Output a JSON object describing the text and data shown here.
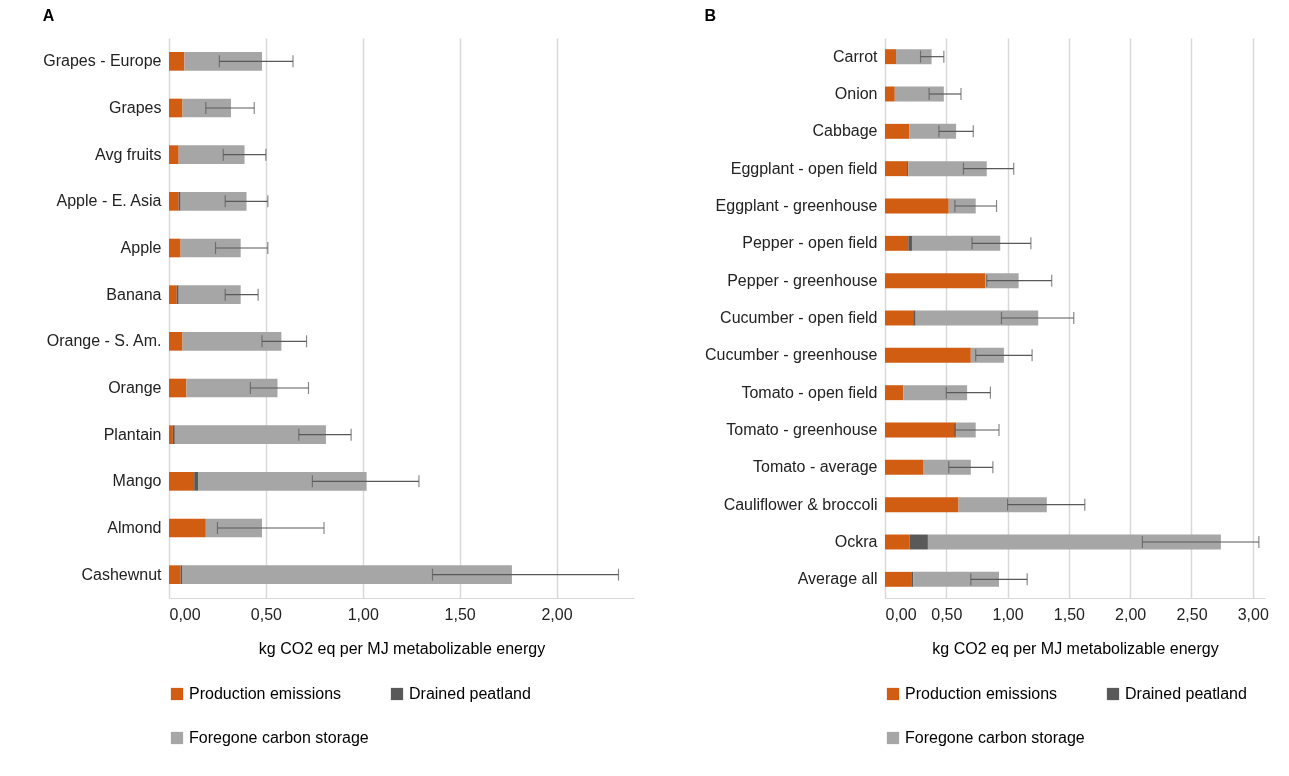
{
  "chart_data": [
    {
      "type": "bar",
      "title": "A",
      "orientation": "horizontal",
      "stacked": true,
      "grid": "x",
      "legend": "bottom",
      "categories": [
        "Grapes - Europe",
        "Grapes",
        "Avg fruits",
        "Apple - E. Asia",
        "Apple",
        "Banana",
        "Orange - S. Am.",
        "Orange",
        "Plantain",
        "Mango",
        "Almond",
        "Cashewnut"
      ],
      "series": [
        {
          "name": "Production emissions",
          "color": "#d15d13",
          "values": [
            0.08,
            0.07,
            0.05,
            0.05,
            0.06,
            0.04,
            0.07,
            0.09,
            0.02,
            0.13,
            0.19,
            0.06
          ]
        },
        {
          "name": "Drained peatland",
          "color": "#595959",
          "values": [
            0,
            0,
            0,
            0.01,
            0,
            0.01,
            0,
            0,
            0.01,
            0.02,
            0,
            0.01
          ]
        },
        {
          "name": "Foregone carbon storage",
          "color": "#a6a6a6",
          "values": [
            0.4,
            0.25,
            0.34,
            0.34,
            0.31,
            0.32,
            0.51,
            0.47,
            0.78,
            0.87,
            0.29,
            1.7
          ],
          "errors": [
            [
              0.26,
              0.64
            ],
            [
              0.19,
              0.44
            ],
            [
              0.28,
              0.5
            ],
            [
              0.29,
              0.51
            ],
            [
              0.24,
              0.51
            ],
            [
              0.29,
              0.46
            ],
            [
              0.48,
              0.71
            ],
            [
              0.42,
              0.72
            ],
            [
              0.67,
              0.94
            ],
            [
              0.74,
              1.29
            ],
            [
              0.25,
              0.8
            ],
            [
              1.36,
              2.32
            ]
          ]
        }
      ],
      "xlim": [
        0,
        2.4
      ],
      "xticks": [
        {
          "value": 0,
          "label": "0,00"
        },
        {
          "value": 0.5,
          "label": "0,50"
        },
        {
          "value": 1,
          "label": "1,00"
        },
        {
          "value": 1.5,
          "label": "1,50"
        },
        {
          "value": 2,
          "label": "2,00"
        }
      ],
      "xlabel": "kg CO2 eq per MJ metabolizable energy"
    },
    {
      "type": "bar",
      "title": "B",
      "orientation": "horizontal",
      "stacked": true,
      "grid": "x",
      "legend": "bottom",
      "categories": [
        "Carrot",
        "Onion",
        "Cabbage",
        "Eggplant - open field",
        "Eggplant - greenhouse",
        "Pepper - open field",
        "Pepper - greenhouse",
        "Cucumber - open field",
        "Cucumber - greenhouse",
        "Tomato - open field",
        "Tomato - greenhouse",
        "Tomato - average",
        "Cauliflower & broccoli",
        "Ockra",
        "Average all"
      ],
      "series": [
        {
          "name": "Production emissions",
          "color": "#d15d13",
          "values": [
            0.09,
            0.08,
            0.2,
            0.18,
            0.52,
            0.19,
            0.82,
            0.23,
            0.7,
            0.15,
            0.58,
            0.31,
            0.6,
            0.2,
            0.22
          ]
        },
        {
          "name": "Drained peatland",
          "color": "#595959",
          "values": [
            0,
            0,
            0,
            0.01,
            0,
            0.03,
            0,
            0.02,
            0,
            0,
            0,
            0,
            0,
            0.15,
            0.01
          ]
        },
        {
          "name": "Foregone carbon storage",
          "color": "#a6a6a6",
          "values": [
            0.29,
            0.4,
            0.38,
            0.64,
            0.22,
            0.72,
            0.27,
            1.0,
            0.27,
            0.52,
            0.16,
            0.39,
            0.72,
            2.39,
            0.7
          ],
          "errors": [
            [
              0.29,
              0.48
            ],
            [
              0.36,
              0.62
            ],
            [
              0.44,
              0.72
            ],
            [
              0.64,
              1.05
            ],
            [
              0.57,
              0.91
            ],
            [
              0.71,
              1.19
            ],
            [
              0.83,
              1.36
            ],
            [
              0.95,
              1.54
            ],
            [
              0.74,
              1.2
            ],
            [
              0.5,
              0.86
            ],
            [
              0.57,
              0.93
            ],
            [
              0.52,
              0.88
            ],
            [
              1.0,
              1.63
            ],
            [
              2.1,
              3.05
            ],
            [
              0.7,
              1.16
            ]
          ]
        }
      ],
      "xlim": [
        0,
        3.1
      ],
      "xticks": [
        {
          "value": 0,
          "label": "0,00"
        },
        {
          "value": 0.5,
          "label": "0,50"
        },
        {
          "value": 1,
          "label": "1,00"
        },
        {
          "value": 1.5,
          "label": "1,50"
        },
        {
          "value": 2,
          "label": "2,00"
        },
        {
          "value": 2.5,
          "label": "2,50"
        },
        {
          "value": 3,
          "label": "3,00"
        }
      ],
      "xlabel": "kg CO2 eq per MJ metabolizable energy"
    }
  ]
}
